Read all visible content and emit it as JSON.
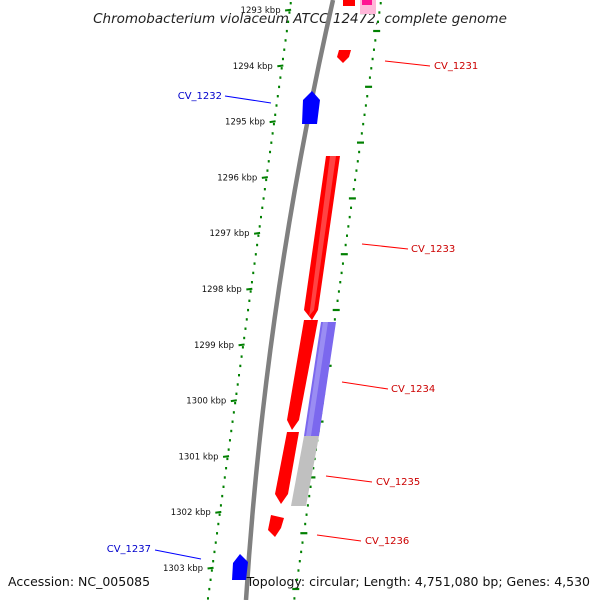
{
  "title": "Chromobacterium violaceum ATCC 12472, complete genome",
  "footer": {
    "accession": "Accession: NC_005085",
    "topology": "Topology: circular; Length: 4,751,080 bp; Genes: 4,530"
  },
  "colors": {
    "forward_gene": "#ff0000",
    "reverse_gene": "#0000ff",
    "backbone": "#808080",
    "tick_green": "#008000",
    "feature_purple": "#7b68ee",
    "feature_gray": "#c0c0c0",
    "feature_pink": "#ff69b4"
  },
  "scale_ticks": [
    {
      "label": "1293 kbp",
      "faded": true
    },
    {
      "label": "1294 kbp",
      "faded": false
    },
    {
      "label": "1295 kbp",
      "faded": false
    },
    {
      "label": "1296 kbp",
      "faded": false
    },
    {
      "label": "1297 kbp",
      "faded": false
    },
    {
      "label": "1298 kbp",
      "faded": false
    },
    {
      "label": "1299 kbp",
      "faded": false
    },
    {
      "label": "1300 kbp",
      "faded": false
    },
    {
      "label": "1301 kbp",
      "faded": false
    },
    {
      "label": "1302 kbp",
      "faded": false
    },
    {
      "label": "1303 kbp",
      "faded": false
    }
  ],
  "gene_labels": [
    {
      "label": "CV_1231",
      "strand": "forward"
    },
    {
      "label": "CV_1232",
      "strand": "reverse"
    },
    {
      "label": "CV_1233",
      "strand": "forward"
    },
    {
      "label": "CV_1234",
      "strand": "forward"
    },
    {
      "label": "CV_1235",
      "strand": "forward"
    },
    {
      "label": "CV_1236",
      "strand": "forward"
    },
    {
      "label": "CV_1237",
      "strand": "reverse"
    }
  ]
}
